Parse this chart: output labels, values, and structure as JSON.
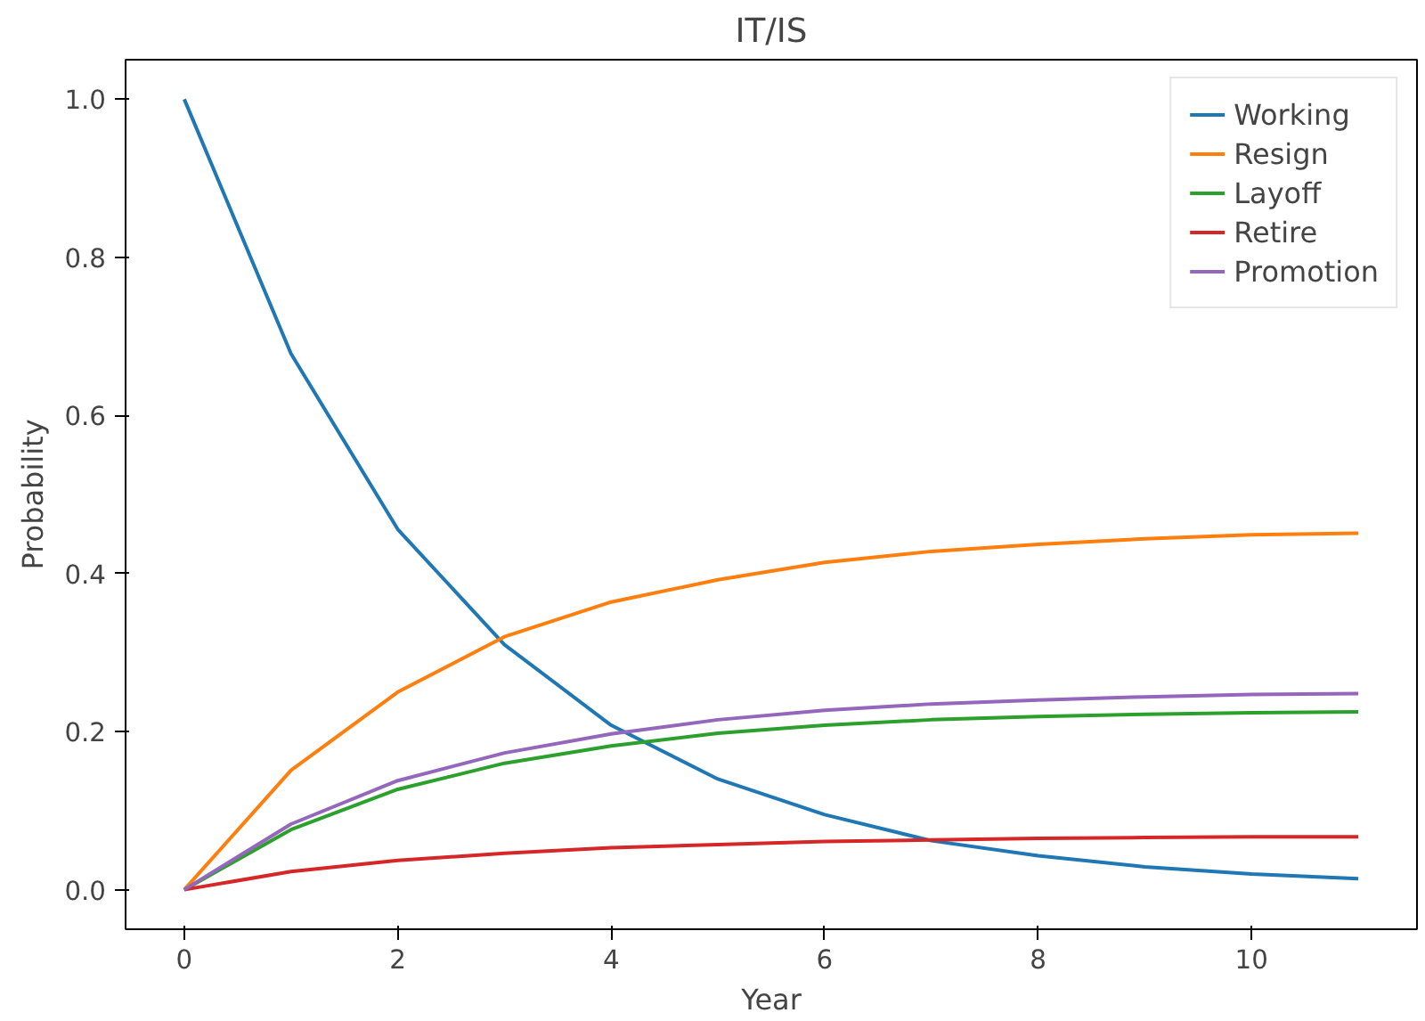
{
  "chart_data": {
    "type": "line",
    "title": "IT/IS",
    "xlabel": "Year",
    "ylabel": "Probability",
    "x": [
      0,
      1,
      2,
      3,
      4,
      5,
      6,
      7,
      8,
      9,
      10,
      11
    ],
    "xlim": [
      -0.55,
      11.55
    ],
    "xticks": [
      0,
      2,
      4,
      6,
      8,
      10
    ],
    "ylim": [
      -0.05,
      1.05
    ],
    "yticks": [
      {
        "value": 0,
        "label": "0.0"
      },
      0.2,
      0.4,
      0.6,
      0.8,
      {
        "value": 1,
        "label": "1.0"
      }
    ],
    "legend": "top right",
    "grid": false,
    "line_style": "solid",
    "series": [
      {
        "name": "Working",
        "color": "#1f77b4",
        "values": [
          1.0,
          0.678,
          0.456,
          0.31,
          0.208,
          0.14,
          0.095,
          0.062,
          0.043,
          0.029,
          0.02,
          0.014
        ]
      },
      {
        "name": "Resign",
        "color": "#ff7f0e",
        "values": [
          0,
          0.151,
          0.25,
          0.32,
          0.364,
          0.392,
          0.414,
          0.428,
          0.437,
          0.444,
          0.449,
          0.451
        ]
      },
      {
        "name": "Layoff",
        "color": "#2ca02c",
        "values": [
          0,
          0.076,
          0.127,
          0.16,
          0.182,
          0.198,
          0.208,
          0.215,
          0.219,
          0.222,
          0.224,
          0.225
        ]
      },
      {
        "name": "Retire",
        "color": "#d62728",
        "values": [
          0,
          0.023,
          0.037,
          0.046,
          0.053,
          0.057,
          0.061,
          0.063,
          0.065,
          0.066,
          0.067,
          0.067
        ]
      },
      {
        "name": "Promotion",
        "color": "#9467bd",
        "values": [
          0,
          0.083,
          0.138,
          0.173,
          0.197,
          0.215,
          0.227,
          0.235,
          0.24,
          0.244,
          0.247,
          0.248
        ]
      }
    ]
  }
}
